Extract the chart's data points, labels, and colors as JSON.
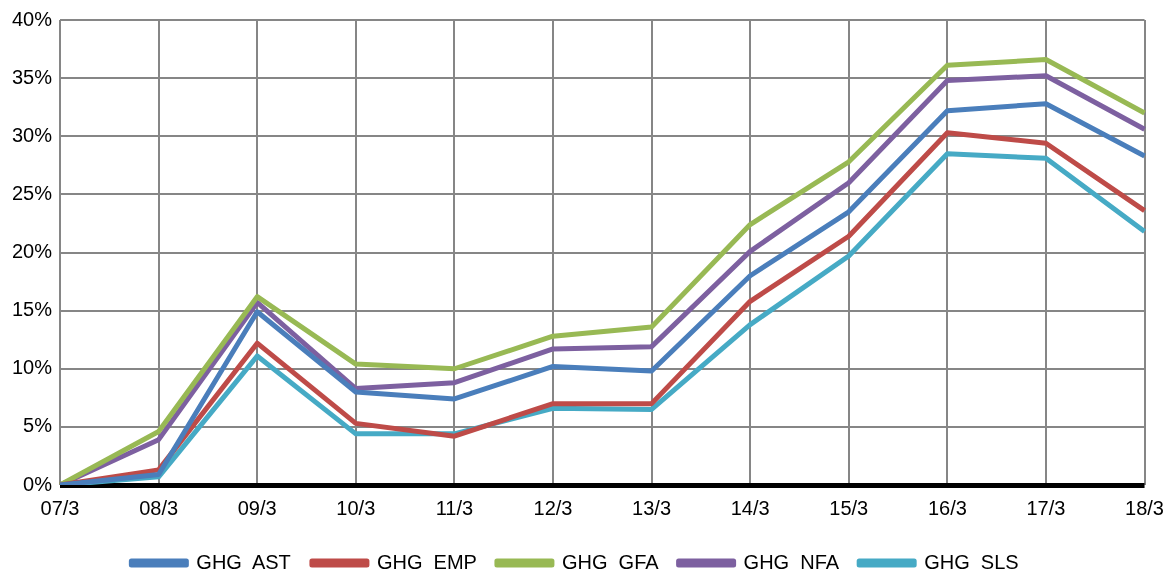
{
  "chart_data": {
    "type": "line",
    "categories": [
      "07/3",
      "08/3",
      "09/3",
      "10/3",
      "11/3",
      "12/3",
      "13/3",
      "14/3",
      "15/3",
      "16/3",
      "17/3",
      "18/3"
    ],
    "series": [
      {
        "name": "GHG  AST",
        "color": "#4a7ebb",
        "values": [
          0,
          0.9,
          14.9,
          8.0,
          7.4,
          10.2,
          9.8,
          18.0,
          23.5,
          32.2,
          32.8,
          28.3
        ]
      },
      {
        "name": "GHG  EMP",
        "color": "#be4b48",
        "values": [
          0,
          1.3,
          12.2,
          5.3,
          4.2,
          7.0,
          7.0,
          15.8,
          21.4,
          30.3,
          29.4,
          23.6
        ]
      },
      {
        "name": "GHG  GFA",
        "color": "#98b954",
        "values": [
          0,
          4.6,
          16.2,
          10.4,
          10.0,
          12.8,
          13.6,
          22.4,
          27.8,
          36.1,
          36.6,
          32.0
        ]
      },
      {
        "name": "GHG  NFA",
        "color": "#7d60a0",
        "values": [
          0,
          3.9,
          15.7,
          8.3,
          8.8,
          11.7,
          11.9,
          20.1,
          26.0,
          34.8,
          35.2,
          30.6
        ]
      },
      {
        "name": "GHG  SLS",
        "color": "#46aac5",
        "values": [
          0,
          0.7,
          11.1,
          4.4,
          4.4,
          6.6,
          6.5,
          13.8,
          19.7,
          28.5,
          28.1,
          21.8
        ]
      }
    ],
    "ylim": [
      0,
      40
    ],
    "yticks": [
      {
        "value": 0,
        "label": "0%"
      },
      {
        "value": 5,
        "label": "5%"
      },
      {
        "value": 10,
        "label": "10%"
      },
      {
        "value": 15,
        "label": "15%"
      },
      {
        "value": 20,
        "label": "20%"
      },
      {
        "value": 25,
        "label": "25%"
      },
      {
        "value": 30,
        "label": "30%"
      },
      {
        "value": 35,
        "label": "35%"
      },
      {
        "value": 40,
        "label": "40%"
      }
    ],
    "grid": true,
    "legend": "bottom",
    "marker": "none",
    "line_style": "solid"
  }
}
